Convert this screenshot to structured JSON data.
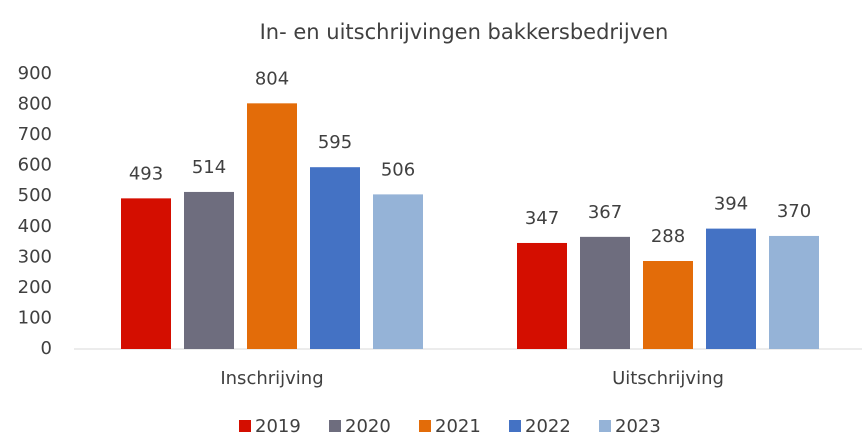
{
  "chart_data": {
    "type": "bar",
    "title": "In- en uitschrijvingen bakkersbedrijven",
    "categories": [
      "Inschrijving",
      "Uitschrijving"
    ],
    "series": [
      {
        "name": "2019",
        "color": "#d40e00",
        "values": [
          493,
          347
        ]
      },
      {
        "name": "2020",
        "color": "#6e6d7e",
        "values": [
          514,
          367
        ]
      },
      {
        "name": "2021",
        "color": "#e36c09",
        "values": [
          804,
          288
        ]
      },
      {
        "name": "2022",
        "color": "#4472c4",
        "values": [
          595,
          394
        ]
      },
      {
        "name": "2023",
        "color": "#95b3d7",
        "values": [
          506,
          370
        ]
      }
    ],
    "ylim": [
      0,
      900
    ],
    "yticks": [
      0,
      100,
      200,
      300,
      400,
      500,
      600,
      700,
      800,
      900
    ],
    "grid": false,
    "legend": "bottom"
  }
}
